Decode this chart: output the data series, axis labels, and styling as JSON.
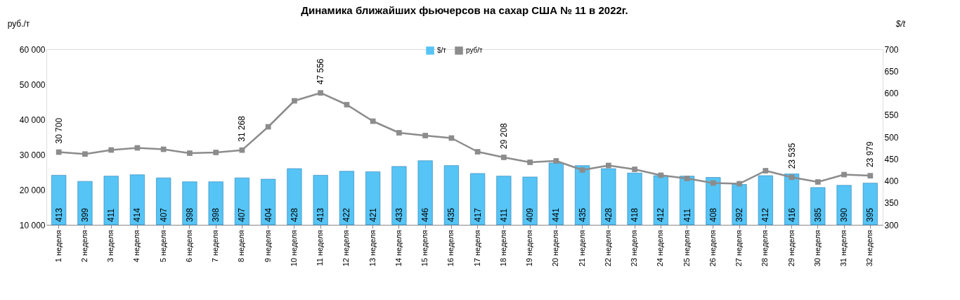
{
  "chart_data": {
    "type": "bar",
    "title": "Динамика ближайших фьючерсов на сахар США № 11 в 2022г.",
    "ylabel": "руб./т",
    "y2label": "$/t",
    "categories": [
      "1 неделя",
      "2 неделя",
      "3 неделя",
      "4 неделя",
      "5 неделя",
      "6 неделя",
      "7 неделя",
      "8 неделя",
      "9 неделя",
      "10 неделя",
      "11 неделя",
      "12 неделя",
      "13 неделя",
      "14 неделя",
      "15 неделя",
      "16 неделя",
      "17 неделя",
      "18 неделя",
      "19 неделя",
      "20 неделя",
      "21 неделя",
      "22 неделя",
      "23 неделя",
      "24 неделя",
      "25 неделя",
      "26 неделя",
      "27 неделя",
      "28 неделя",
      "29 неделя",
      "30 неделя",
      "31 неделя",
      "32 неделя"
    ],
    "series": [
      {
        "name": "$/т",
        "axis": "y2",
        "color": "#56c4f5",
        "values": [
          413,
          399,
          411,
          414,
          407,
          398,
          398,
          407,
          404,
          428,
          413,
          422,
          421,
          433,
          446,
          435,
          417,
          411,
          409,
          441,
          435,
          428,
          418,
          412,
          411,
          408,
          392,
          412,
          416,
          385,
          390,
          395
        ],
        "value_labels": [
          "413",
          "399",
          "411",
          "414",
          "407",
          "398",
          "398",
          "407",
          "404",
          "428",
          "413",
          "422",
          "421",
          "433",
          "446",
          "435",
          "417",
          "411",
          "409",
          "441",
          "435",
          "428",
          "418",
          "412",
          "411",
          "408",
          "392",
          "412",
          "416",
          "385",
          "390",
          "395"
        ]
      },
      {
        "name": "руб/т",
        "type": "line",
        "color": "#8c8c8c",
        "marker": "square",
        "values": [
          30700,
          30150,
          31300,
          31900,
          31500,
          30400,
          30600,
          31268,
          37900,
          45300,
          47556,
          44200,
          39500,
          36200,
          35400,
          34700,
          30800,
          29208,
          27800,
          28200,
          25600,
          26900,
          25800,
          24100,
          23200,
          21900,
          21700,
          25400,
          23535,
          22200,
          24300,
          23979
        ],
        "value_labels": [
          "30 700",
          null,
          null,
          null,
          null,
          null,
          null,
          "31 268",
          null,
          null,
          "47 556",
          null,
          null,
          null,
          null,
          null,
          null,
          "29 208",
          null,
          null,
          null,
          null,
          null,
          null,
          null,
          null,
          null,
          null,
          "23 535",
          null,
          null,
          "23 979"
        ]
      }
    ],
    "ylim": [
      10000,
      60000
    ],
    "yticks": [
      {
        "value": 10000,
        "label": "10 000"
      },
      {
        "value": 20000,
        "label": "20 000"
      },
      {
        "value": 30000,
        "label": "30 000"
      },
      {
        "value": 40000,
        "label": "40 000"
      },
      {
        "value": 50000,
        "label": "50 000"
      },
      {
        "value": 60000,
        "label": "60 000"
      }
    ],
    "y2lim": [
      300,
      700
    ],
    "y2ticks": [
      300,
      350,
      400,
      450,
      500,
      550,
      600,
      650,
      700
    ],
    "legend": "top",
    "grid": false
  }
}
